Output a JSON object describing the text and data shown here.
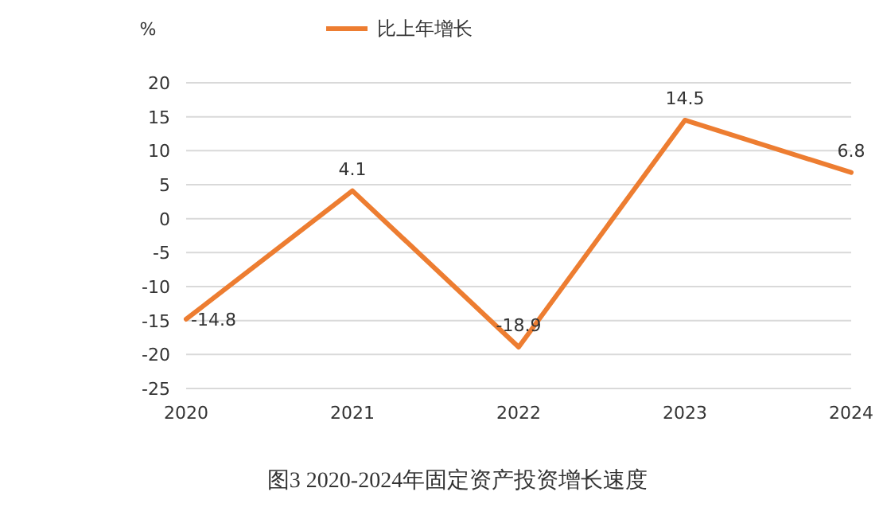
{
  "chart_data": {
    "type": "line",
    "title": "图3  2020-2024年固定资产投资增长速度",
    "ylabel": "%",
    "categories": [
      "2020",
      "2021",
      "2022",
      "2023",
      "2024"
    ],
    "series": [
      {
        "name": "比上年增长",
        "color": "#ed7d31",
        "values": [
          -14.8,
          4.1,
          -18.9,
          14.5,
          6.8
        ]
      }
    ],
    "ylim": [
      -25,
      20
    ],
    "yticks": [
      -25,
      -20,
      -15,
      -10,
      -5,
      0,
      5,
      10,
      15,
      20
    ],
    "grid": "y",
    "legend": "top",
    "data_labels": true,
    "marker": "none"
  }
}
